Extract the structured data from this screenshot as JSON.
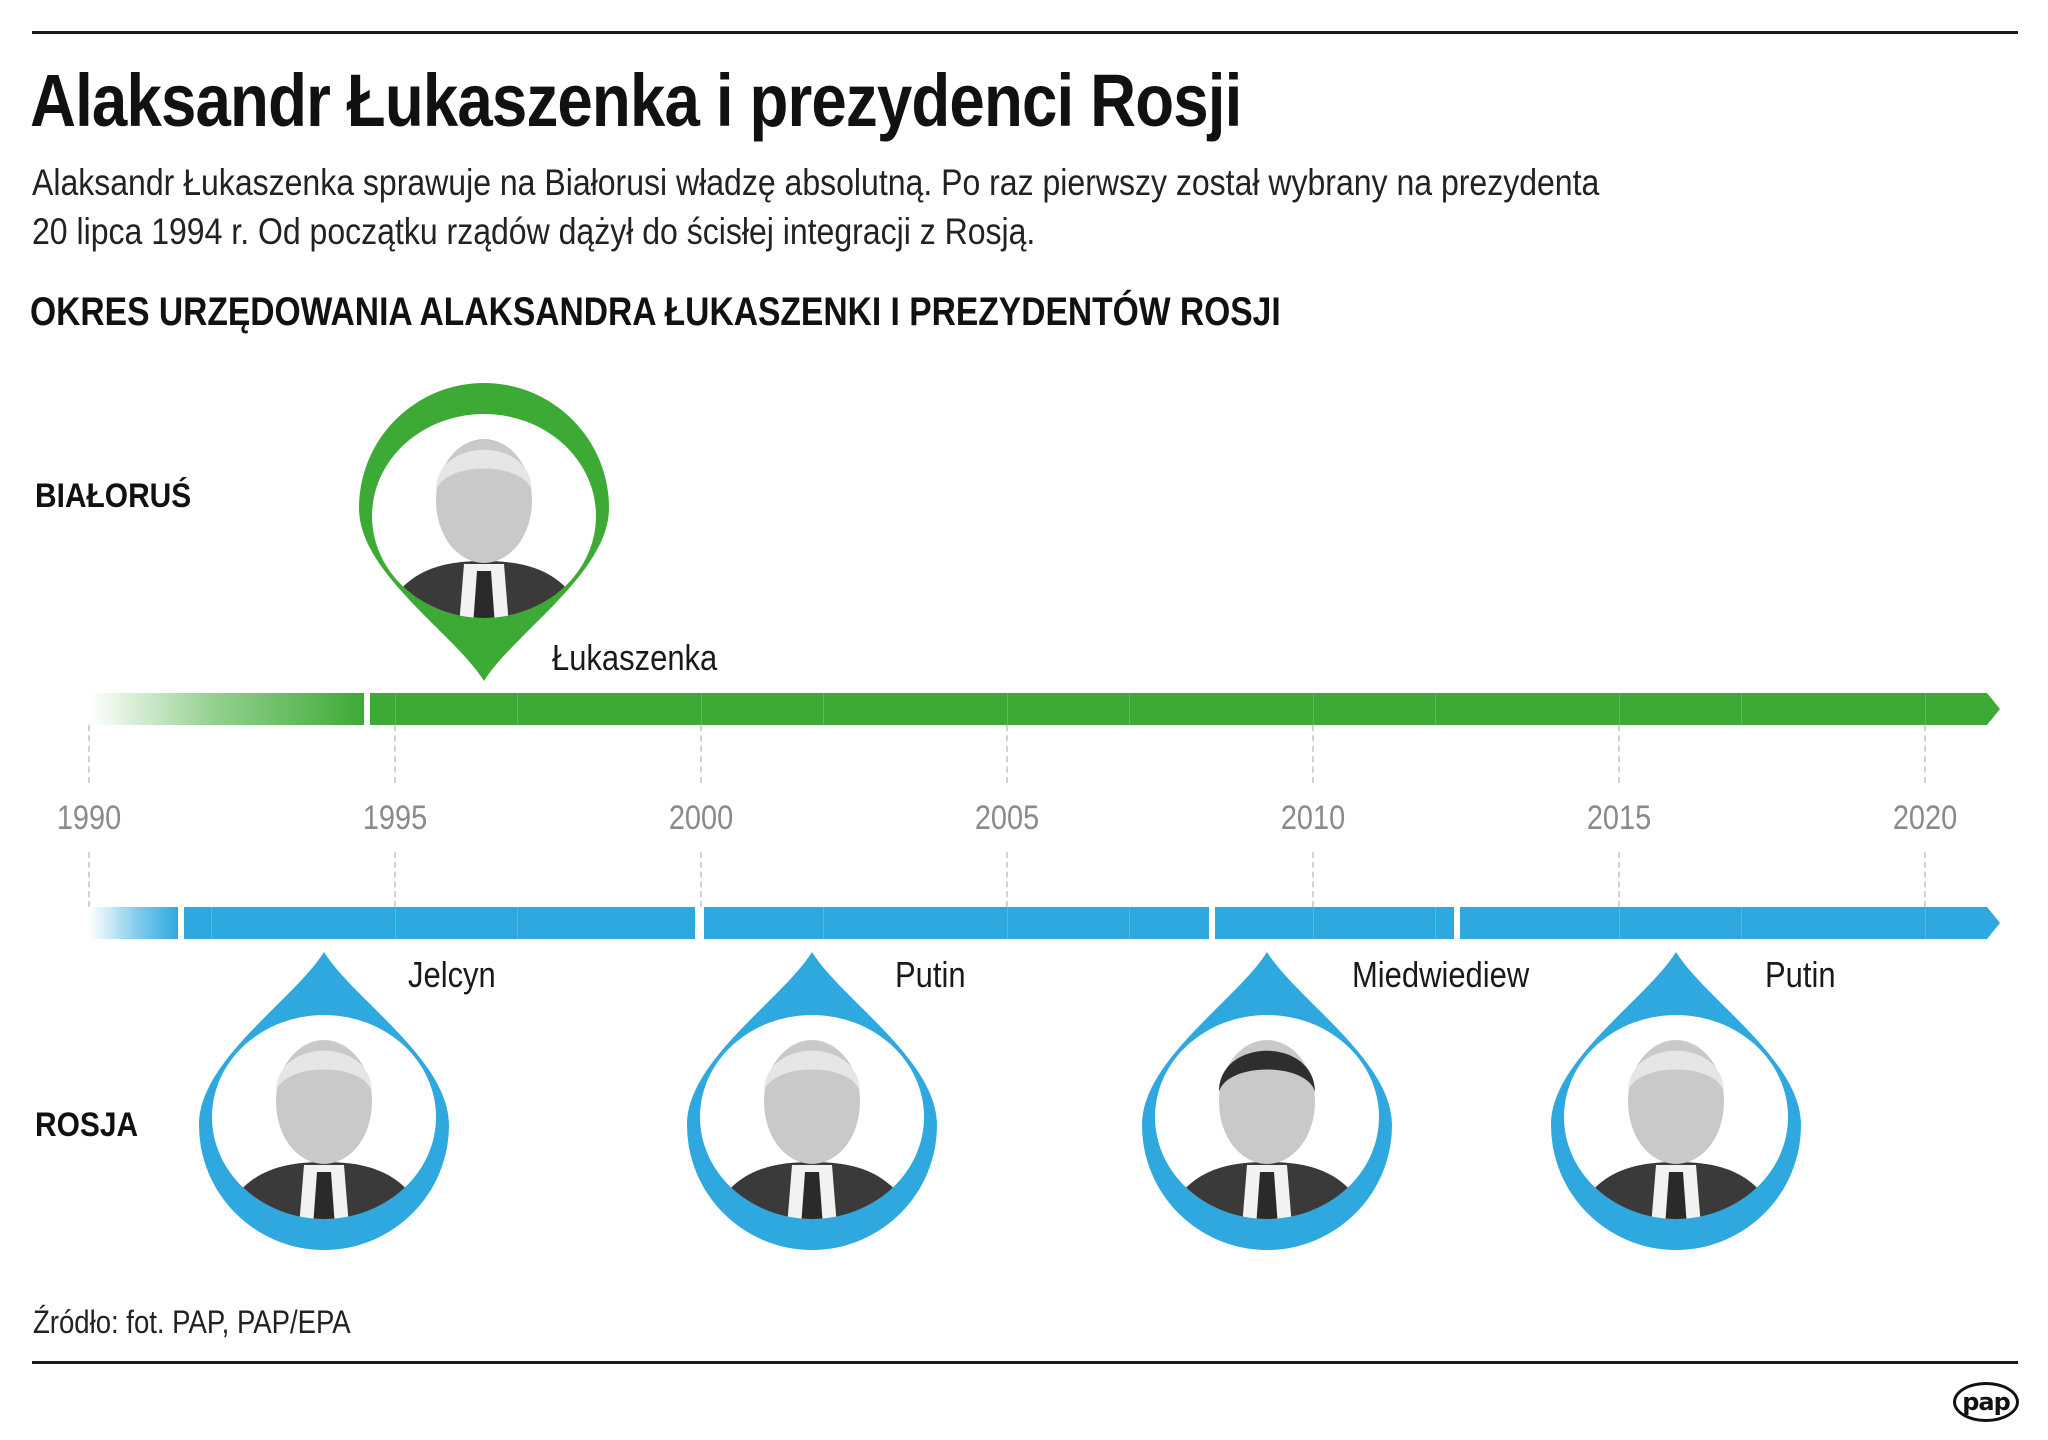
{
  "header": {
    "title": "Alaksandr Łukaszenka i prezydenci Rosji",
    "subtitle_line1": "Alaksandr Łukaszenka sprawuje na Białorusi władzę absolutną. Po raz pierwszy został wybrany na prezydenta",
    "subtitle_line2": "20 lipca 1994 r. Od początku rządów dążył do ścisłej integracji z Rosją.",
    "section_title": "OKRES URZĘDOWANIA ALAKSANDRA ŁUKASZENKI I PREZYDENTÓW ROSJI"
  },
  "rows": {
    "belarus_label": "BIAŁORUŚ",
    "russia_label": "ROSJA"
  },
  "colors": {
    "belarus": "#3daa35",
    "russia": "#2ea8df",
    "axis_text": "#8a8a8a",
    "tick": "#d2d2d2"
  },
  "footer": {
    "source": "Źródło: fot. PAP, PAP/EPA",
    "logo": "pap"
  },
  "chart_data": {
    "type": "timeline",
    "title": "OKRES URZĘDOWANIA ALAKSANDRA ŁUKASZENKI I PREZYDENTÓW ROSJI",
    "xlabel": "",
    "ylabel": "",
    "xlim": [
      1990,
      2021.2
    ],
    "ticks": [
      1990,
      1995,
      2000,
      2005,
      2010,
      2015,
      2020
    ],
    "grid": true,
    "series": [
      {
        "name": "BIAŁORUŚ",
        "color": "#3daa35",
        "pre_start": 1990,
        "terms": [
          {
            "person": "Łukaszenka",
            "start": 1994.55,
            "end": 2021.2,
            "ongoing": true,
            "icon": "lukashenko-portrait-icon"
          }
        ]
      },
      {
        "name": "ROSJA",
        "color": "#2ea8df",
        "pre_start": 1990,
        "terms": [
          {
            "person": "Jelcyn",
            "start": 1991.5,
            "end": 1999.95,
            "ongoing": false,
            "icon": "yeltsin-portrait-icon"
          },
          {
            "person": "Putin",
            "start": 2000,
            "end": 2008.35,
            "ongoing": false,
            "icon": "putin-portrait-icon"
          },
          {
            "person": "Miedwiediew",
            "start": 2008.35,
            "end": 2012.35,
            "ongoing": false,
            "icon": "medvedev-portrait-icon"
          },
          {
            "person": "Putin",
            "start": 2012.35,
            "end": 2021.2,
            "ongoing": true,
            "icon": "putin-portrait-icon"
          }
        ]
      }
    ]
  }
}
